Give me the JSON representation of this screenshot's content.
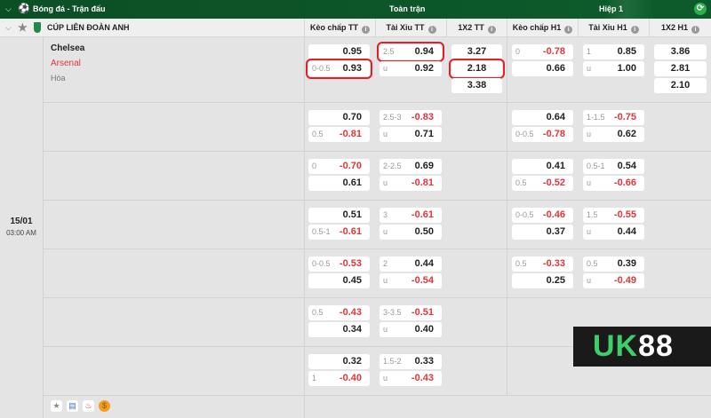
{
  "topbar": {
    "title": "Bóng đá - Trận đấu",
    "full_time": "Toàn trận",
    "half1": "Hiệp 1"
  },
  "league": {
    "name": "CÚP LIÊN ĐOÀN ANH"
  },
  "columns": [
    "Kèo chấp TT",
    "Tài Xỉu TT",
    "1X2 TT",
    "Kèo chấp H1",
    "Tài Xỉu H1",
    "1X2 H1"
  ],
  "match": {
    "home": "Chelsea",
    "away": "Arsenal",
    "draw": "Hòa",
    "date": "15/01",
    "time": "03:00 AM"
  },
  "colors": {
    "header_green": "#0d5a2b",
    "negative": "#e0353b",
    "highlight": "#e0202a"
  },
  "rows": [
    {
      "kc_tt": [
        {
          "line": "",
          "odd": "0.95"
        },
        {
          "line": "0-0.5",
          "odd": "0.93",
          "hl": true
        }
      ],
      "tx_tt": [
        {
          "line": "2.5",
          "odd": "0.94",
          "hl": true
        },
        {
          "line": "u",
          "odd": "0.92"
        }
      ],
      "x12_tt": [
        {
          "odd": "3.27"
        },
        {
          "odd": "2.18",
          "hl": true
        },
        {
          "odd": "3.38"
        }
      ],
      "kc_h1": [
        {
          "line": "0",
          "odd": "-0.78"
        },
        {
          "line": "",
          "odd": "0.66"
        }
      ],
      "tx_h1": [
        {
          "line": "1",
          "odd": "0.85"
        },
        {
          "line": "u",
          "odd": "1.00"
        }
      ],
      "x12_h1": [
        {
          "odd": "3.86"
        },
        {
          "odd": "2.81"
        },
        {
          "odd": "2.10"
        }
      ]
    },
    {
      "kc_tt": [
        {
          "line": "",
          "odd": "0.70"
        },
        {
          "line": "0.5",
          "odd": "-0.81"
        }
      ],
      "tx_tt": [
        {
          "line": "2.5-3",
          "odd": "-0.83"
        },
        {
          "line": "u",
          "odd": "0.71"
        }
      ],
      "kc_h1": [
        {
          "line": "",
          "odd": "0.64"
        },
        {
          "line": "0-0.5",
          "odd": "-0.78"
        }
      ],
      "tx_h1": [
        {
          "line": "1-1.5",
          "odd": "-0.75"
        },
        {
          "line": "u",
          "odd": "0.62"
        }
      ]
    },
    {
      "kc_tt": [
        {
          "line": "0",
          "odd": "-0.70"
        },
        {
          "line": "",
          "odd": "0.61"
        }
      ],
      "tx_tt": [
        {
          "line": "2-2.5",
          "odd": "0.69"
        },
        {
          "line": "u",
          "odd": "-0.81"
        }
      ],
      "kc_h1": [
        {
          "line": "",
          "odd": "0.41"
        },
        {
          "line": "0.5",
          "odd": "-0.52"
        }
      ],
      "tx_h1": [
        {
          "line": "0.5-1",
          "odd": "0.54"
        },
        {
          "line": "u",
          "odd": "-0.66"
        }
      ]
    },
    {
      "kc_tt": [
        {
          "line": "",
          "odd": "0.51"
        },
        {
          "line": "0.5-1",
          "odd": "-0.61"
        }
      ],
      "tx_tt": [
        {
          "line": "3",
          "odd": "-0.61"
        },
        {
          "line": "u",
          "odd": "0.50"
        }
      ],
      "kc_h1": [
        {
          "line": "0-0.5",
          "odd": "-0.46"
        },
        {
          "line": "",
          "odd": "0.37"
        }
      ],
      "tx_h1": [
        {
          "line": "1.5",
          "odd": "-0.55"
        },
        {
          "line": "u",
          "odd": "0.44"
        }
      ]
    },
    {
      "kc_tt": [
        {
          "line": "0-0.5",
          "odd": "-0.53"
        },
        {
          "line": "",
          "odd": "0.45"
        }
      ],
      "tx_tt": [
        {
          "line": "2",
          "odd": "0.44"
        },
        {
          "line": "u",
          "odd": "-0.54"
        }
      ],
      "kc_h1": [
        {
          "line": "0.5",
          "odd": "-0.33"
        },
        {
          "line": "",
          "odd": "0.25"
        }
      ],
      "tx_h1": [
        {
          "line": "0.5",
          "odd": "0.39"
        },
        {
          "line": "u",
          "odd": "-0.49"
        }
      ]
    },
    {
      "kc_tt": [
        {
          "line": "0.5",
          "odd": "-0.43"
        },
        {
          "line": "",
          "odd": "0.34"
        }
      ],
      "tx_tt": [
        {
          "line": "3-3.5",
          "odd": "-0.51"
        },
        {
          "line": "u",
          "odd": "0.40"
        }
      ]
    },
    {
      "kc_tt": [
        {
          "line": "",
          "odd": "0.32"
        },
        {
          "line": "1",
          "odd": "-0.40"
        }
      ],
      "tx_tt": [
        {
          "line": "1.5-2",
          "odd": "0.33"
        },
        {
          "line": "u",
          "odd": "-0.43"
        }
      ]
    }
  ],
  "footer_icons": [
    "star-icon",
    "database-icon",
    "fire-icon",
    "coin-icon"
  ],
  "watermark": {
    "text": "UK88"
  }
}
